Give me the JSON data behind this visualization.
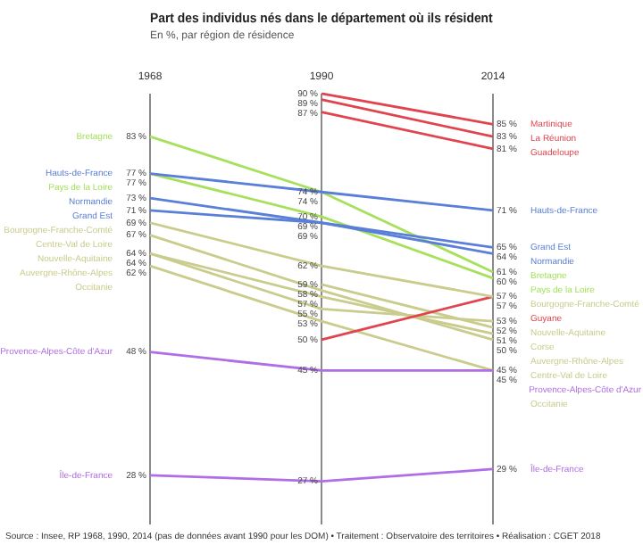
{
  "chart_data": {
    "type": "line",
    "title": "Part des individus nés dans le département où ils résident",
    "subtitle": "En %, par région de résidence",
    "categories": [
      "1968",
      "1990",
      "2014"
    ],
    "grid": "x",
    "marker": "none",
    "legend": false,
    "annotations": [
      "Source : Insee, RP 1968, 1990, 2014 (pas de données avant 1990 pour les DOM) • Traitement : Observatoire des territoires • Réalisation : CGET 2018"
    ],
    "series": [
      {
        "name": "Martinique",
        "color": "#e0444e",
        "values": [
          null,
          90,
          85
        ],
        "value_labels": [
          null,
          "90 %",
          "85 %"
        ]
      },
      {
        "name": "La Réunion",
        "color": "#e0444e",
        "values": [
          null,
          89,
          83
        ],
        "value_labels": [
          null,
          "89 %",
          "83 %"
        ]
      },
      {
        "name": "Guadeloupe",
        "color": "#e0444e",
        "values": [
          null,
          87,
          81
        ],
        "value_labels": [
          null,
          "87 %",
          "81 %"
        ]
      },
      {
        "name": "Hauts-de-France",
        "color": "#5a7fd8",
        "values": [
          77,
          74,
          71
        ],
        "value_labels": [
          "77 %",
          "74 %",
          "71 %"
        ]
      },
      {
        "name": "Grand Est",
        "color": "#5a7fd8",
        "values": [
          71,
          69,
          65
        ],
        "value_labels": [
          "71 %",
          "69 %",
          "65 %"
        ]
      },
      {
        "name": "Normandie",
        "color": "#5a7fd8",
        "values": [
          73,
          69,
          64
        ],
        "value_labels": [
          "73 %",
          "69 %",
          "64 %"
        ]
      },
      {
        "name": "Bretagne",
        "color": "#a6e05c",
        "values": [
          83,
          74,
          61
        ],
        "value_labels": [
          "83 %",
          "74 %",
          "61 %"
        ]
      },
      {
        "name": "Pays de la Loire",
        "color": "#a6e05c",
        "values": [
          77,
          70,
          60
        ],
        "value_labels": [
          "77 %",
          "70 %",
          "60 %"
        ]
      },
      {
        "name": "Bourgogne-Franche-Comté",
        "color": "#c9cc8c",
        "values": [
          69,
          62,
          57
        ],
        "value_labels": [
          "69 %",
          "62 %",
          "57 %"
        ]
      },
      {
        "name": "Guyane",
        "color": "#e0444e",
        "values": [
          null,
          50,
          57
        ],
        "value_labels": [
          null,
          "50 %",
          "57 %"
        ]
      },
      {
        "name": "Nouvelle-Aquitaine",
        "color": "#c9cc8c",
        "values": [
          64,
          55,
          53
        ],
        "value_labels": [
          "64 %",
          "55 %",
          "53 %"
        ]
      },
      {
        "name": "Corse",
        "color": "#c9cc8c",
        "values": [
          null,
          59,
          52
        ],
        "value_labels": [
          null,
          "59 %",
          "52 %"
        ]
      },
      {
        "name": "Auvergne-Rhône-Alpes",
        "color": "#c9cc8c",
        "values": [
          64,
          57,
          51
        ],
        "value_labels": [
          "64 %",
          "57 %",
          "51 %"
        ]
      },
      {
        "name": "Centre-Val de Loire",
        "color": "#c9cc8c",
        "values": [
          67,
          58,
          50
        ],
        "value_labels": [
          "67 %",
          "58 %",
          "50 %"
        ]
      },
      {
        "name": "Provence-Alpes-Côte d'Azur",
        "color": "#b06ee6",
        "values": [
          48,
          45,
          45
        ],
        "value_labels": [
          "48 %",
          "45 %",
          "45 %"
        ]
      },
      {
        "name": "Occitanie",
        "color": "#c9cc8c",
        "values": [
          62,
          53,
          45
        ],
        "value_labels": [
          "62 %",
          "53 %",
          "45 %"
        ]
      },
      {
        "name": "Île-de-France",
        "color": "#b06ee6",
        "values": [
          28,
          27,
          29
        ],
        "value_labels": [
          "28 %",
          "27 %",
          "29 %"
        ]
      }
    ]
  }
}
